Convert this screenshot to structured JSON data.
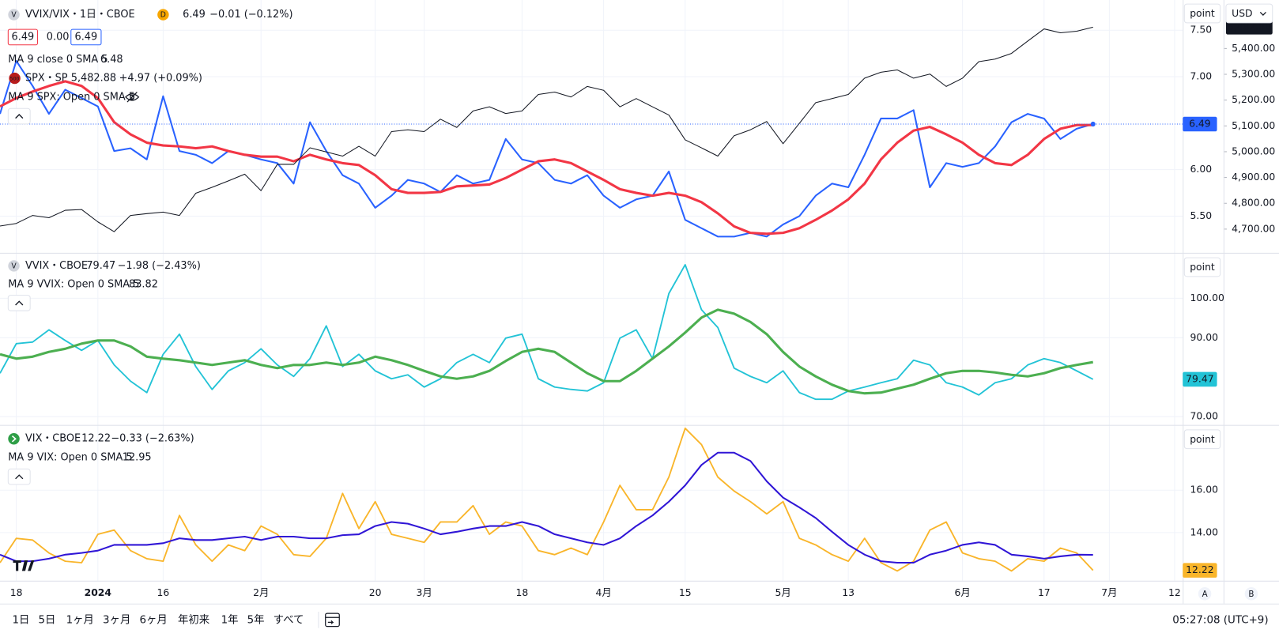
{
  "chart_data": [
    {
      "type": "line",
      "badge": "V",
      "interval_badge": "D",
      "change": "−0.01 (−0.12%)",
      "inputs": [
        "6.49",
        "0.00",
        "6.49"
      ],
      "hidden_study": "MA 9 SPX: Open 0 SMA 5",
      "scale_mode": "point",
      "currency": "USD",
      "ylim": [
        5.105,
        7.825
      ],
      "yticks": [
        {
          "value": 7.5,
          "label": "7.50"
        },
        {
          "value": 7,
          "label": "7.00"
        },
        {
          "value": 6,
          "label": "6.00"
        },
        {
          "value": 5.5,
          "label": "5.50"
        }
      ],
      "y2lim": [
        4608,
        5588
      ],
      "y2ticks": [
        {
          "value": 5400,
          "label": "5,400.00"
        },
        {
          "value": 5300,
          "label": "5,300.00"
        },
        {
          "value": 5200,
          "label": "5,200.00"
        },
        {
          "value": 5100,
          "label": "5,100.00"
        },
        {
          "value": 5000,
          "label": "5,000.00"
        },
        {
          "value": 4900,
          "label": "4,900.00"
        },
        {
          "value": 4800,
          "label": "4,800.00"
        },
        {
          "value": 4700,
          "label": "4,700.00"
        }
      ],
      "grid": true,
      "series": [
        {
          "name": "VVIX/VIX・1日・CBOE",
          "color": "#2962ff",
          "width": 2,
          "values": [
            6.6,
            7.17,
            6.9,
            6.6,
            6.86,
            6.77,
            6.68,
            6.2,
            6.23,
            6.11,
            6.79,
            6.2,
            6.16,
            6.07,
            6.2,
            6.16,
            6.11,
            6.07,
            5.85,
            6.51,
            6.2,
            5.94,
            5.85,
            5.59,
            5.72,
            5.89,
            5.85,
            5.76,
            5.94,
            5.85,
            5.89,
            6.33,
            6.11,
            6.07,
            5.89,
            5.85,
            5.94,
            5.72,
            5.59,
            5.68,
            5.72,
            5.98,
            5.46,
            5.37,
            5.28,
            5.28,
            5.32,
            5.28,
            5.41,
            5.5,
            5.72,
            5.85,
            5.81,
            6.16,
            6.55,
            6.55,
            6.64,
            5.81,
            6.07,
            6.03,
            6.07,
            6.25,
            6.51,
            6.6,
            6.55,
            6.33,
            6.44,
            6.49,
            null,
            null,
            null,
            null,
            null
          ]
        },
        {
          "name": "MA 9 close 0 SMA 5",
          "color": "#f23645",
          "width": 3,
          "values": [
            6.68,
            6.77,
            6.84,
            6.9,
            6.95,
            6.9,
            6.77,
            6.51,
            6.38,
            6.29,
            6.26,
            6.25,
            6.23,
            6.25,
            6.2,
            6.16,
            6.14,
            6.14,
            6.09,
            6.16,
            6.11,
            6.07,
            6.05,
            5.94,
            5.79,
            5.75,
            5.75,
            5.76,
            5.82,
            5.83,
            5.84,
            5.91,
            6.0,
            6.09,
            6.11,
            6.07,
            5.98,
            5.89,
            5.79,
            5.75,
            5.72,
            5.75,
            5.72,
            5.65,
            5.53,
            5.39,
            5.32,
            5.31,
            5.32,
            5.37,
            5.46,
            5.56,
            5.68,
            5.85,
            6.11,
            6.29,
            6.42,
            6.46,
            6.38,
            6.29,
            6.16,
            6.07,
            6.05,
            6.16,
            6.33,
            6.44,
            6.48,
            6.48,
            null,
            null,
            null,
            null,
            null
          ]
        },
        {
          "name": "SPX・SP",
          "badge": "500",
          "change": "+4.97 (+0.09%)",
          "color": "#131722",
          "width": 1,
          "axis": "y2",
          "values": [
            4712,
            4722,
            4753,
            4744,
            4773,
            4776,
            4728,
            4690,
            4753,
            4760,
            4766,
            4753,
            4839,
            4862,
            4887,
            4913,
            4849,
            4951,
            4951,
            5015,
            4999,
            4983,
            5021,
            4983,
            5078,
            5085,
            5078,
            5126,
            5094,
            5158,
            5174,
            5148,
            5158,
            5222,
            5231,
            5212,
            5253,
            5238,
            5174,
            5206,
            5174,
            5142,
            5046,
            5015,
            4983,
            5062,
            5085,
            5117,
            5031,
            5110,
            5190,
            5206,
            5222,
            5285,
            5308,
            5317,
            5285,
            5301,
            5253,
            5285,
            5349,
            5359,
            5381,
            5429,
            5476,
            5461,
            5467,
            5482.88,
            null,
            null,
            null,
            null,
            null
          ],
          "value_labels": [
            null,
            null,
            null,
            null,
            null,
            null,
            null,
            null,
            null,
            null,
            null,
            null,
            null,
            null,
            null,
            null,
            null,
            null,
            null,
            null,
            null,
            null,
            null,
            null,
            null,
            null,
            null,
            null,
            null,
            null,
            null,
            null,
            null,
            null,
            null,
            null,
            null,
            null,
            null,
            null,
            null,
            null,
            null,
            null,
            null,
            null,
            null,
            null,
            null,
            null,
            null,
            null,
            null,
            null,
            null,
            null,
            null,
            null,
            null,
            null,
            null,
            null,
            null,
            null,
            null,
            null,
            null,
            "5,482.88",
            null,
            null,
            null,
            null,
            null
          ]
        }
      ]
    },
    {
      "type": "line",
      "badge": "V",
      "change": "−1.98 (−2.43%)",
      "scale_mode": "point",
      "ylim": [
        67.9,
        111.3
      ],
      "yticks": [
        {
          "value": 100,
          "label": "100.00"
        },
        {
          "value": 90,
          "label": "90.00"
        },
        {
          "value": 70,
          "label": "70.00"
        }
      ],
      "grid": true,
      "series": [
        {
          "name": "VVIX・CBOE",
          "color": "#22c3d6",
          "width": 1.8,
          "values": [
            81.0,
            88.5,
            88.9,
            92.0,
            89.3,
            86.8,
            89.3,
            83.1,
            79.0,
            76.1,
            85.8,
            90.9,
            82.7,
            76.9,
            81.6,
            83.7,
            87.2,
            83.1,
            80.2,
            84.7,
            93.0,
            82.7,
            85.8,
            81.6,
            79.6,
            80.6,
            77.5,
            79.6,
            83.7,
            85.8,
            83.7,
            89.9,
            90.9,
            79.6,
            77.5,
            76.9,
            76.5,
            78.6,
            89.9,
            92.0,
            84.7,
            101.2,
            108.5,
            97.1,
            92.6,
            82.3,
            80.2,
            78.6,
            81.6,
            76.1,
            74.4,
            74.4,
            76.5,
            77.5,
            78.6,
            79.6,
            84.3,
            83.1,
            78.6,
            77.5,
            75.5,
            78.6,
            79.6,
            83.1,
            84.7,
            83.7,
            81.6,
            79.47,
            null,
            null,
            null,
            null,
            null
          ]
        },
        {
          "name": "MA 9 VVIX: Open 0 SMA 5",
          "color": "#4caf50",
          "width": 3,
          "values": [
            85.8,
            84.7,
            85.2,
            86.4,
            87.2,
            88.5,
            89.3,
            89.3,
            87.8,
            85.2,
            84.7,
            84.3,
            83.7,
            83.1,
            83.7,
            84.3,
            83.1,
            82.3,
            83.1,
            83.1,
            83.7,
            83.1,
            83.7,
            85.2,
            84.3,
            83.1,
            81.6,
            80.2,
            79.6,
            80.2,
            81.6,
            84.1,
            86.4,
            87.2,
            86.4,
            83.7,
            81.0,
            79.0,
            79.0,
            81.6,
            84.7,
            87.8,
            91.3,
            95.1,
            97.1,
            96.1,
            94.0,
            90.9,
            86.4,
            82.7,
            80.2,
            78.1,
            76.5,
            75.9,
            76.1,
            77.1,
            78.1,
            79.6,
            81.0,
            81.6,
            81.6,
            81.2,
            80.6,
            80.2,
            81.0,
            82.3,
            83.1,
            83.82,
            null,
            null,
            null,
            null,
            null
          ]
        }
      ]
    },
    {
      "type": "line",
      "change": "−0.33 (−2.63%)",
      "scale_mode": "point",
      "categories": [
        null,
        "18",
        null,
        null,
        null,
        null,
        "2024",
        null,
        null,
        null,
        "16",
        null,
        null,
        null,
        null,
        null,
        "2月",
        null,
        null,
        null,
        null,
        null,
        null,
        "20",
        null,
        null,
        "3月",
        null,
        null,
        null,
        null,
        null,
        "18",
        null,
        null,
        null,
        null,
        "4月",
        null,
        null,
        null,
        null,
        "15",
        null,
        null,
        null,
        null,
        null,
        "5月",
        null,
        null,
        null,
        "13",
        null,
        null,
        null,
        null,
        null,
        null,
        "6月",
        null,
        null,
        null,
        null,
        "17",
        null,
        null,
        null,
        "7月",
        null,
        null,
        null,
        "12"
      ],
      "ylim": [
        11.73,
        19.04
      ],
      "yticks": [
        {
          "value": 16,
          "label": "16.00"
        },
        {
          "value": 14,
          "label": "14.00"
        }
      ],
      "grid": true,
      "series": [
        {
          "name": "VIX・CBOE",
          "color": "#f9b52a",
          "width": 1.8,
          "values": [
            12.58,
            13.73,
            13.65,
            13.04,
            12.65,
            12.58,
            13.92,
            14.12,
            13.15,
            12.77,
            12.65,
            14.81,
            13.42,
            12.65,
            13.42,
            13.15,
            14.31,
            13.92,
            12.96,
            12.88,
            13.73,
            15.85,
            14.19,
            15.46,
            13.92,
            13.73,
            13.54,
            14.5,
            14.5,
            15.27,
            13.92,
            14.5,
            14.31,
            13.15,
            12.96,
            13.27,
            12.96,
            14.5,
            16.23,
            15.08,
            15.08,
            16.62,
            18.92,
            18.15,
            16.62,
            15.96,
            15.46,
            14.88,
            15.46,
            13.73,
            13.42,
            12.96,
            12.65,
            13.73,
            12.58,
            12.19,
            12.65,
            14.12,
            14.5,
            13.04,
            12.77,
            12.65,
            12.19,
            12.77,
            12.65,
            13.27,
            13.04,
            12.22,
            null,
            null,
            null,
            null,
            null
          ]
        },
        {
          "name": "MA 9 VIX: Open 0 SMA 5",
          "color": "#3016d6",
          "width": 2,
          "values": [
            12.96,
            12.65,
            12.65,
            12.77,
            12.96,
            13.04,
            13.15,
            13.42,
            13.42,
            13.42,
            13.5,
            13.73,
            13.65,
            13.65,
            13.73,
            13.81,
            13.65,
            13.81,
            13.81,
            13.73,
            13.73,
            13.88,
            13.92,
            14.31,
            14.5,
            14.42,
            14.19,
            13.92,
            14.04,
            14.19,
            14.31,
            14.31,
            14.5,
            14.31,
            13.92,
            13.73,
            13.54,
            13.42,
            13.73,
            14.31,
            14.81,
            15.46,
            16.23,
            17.19,
            17.77,
            17.77,
            17.38,
            16.42,
            15.65,
            15.19,
            14.69,
            14.04,
            13.42,
            12.96,
            12.65,
            12.58,
            12.58,
            12.96,
            13.15,
            13.42,
            13.54,
            13.42,
            12.96,
            12.88,
            12.77,
            12.88,
            12.96,
            12.95,
            null,
            null,
            null,
            null,
            null
          ]
        }
      ]
    }
  ],
  "scale_buttons": [
    "A",
    "B"
  ],
  "toolbar": {
    "ranges": [
      "1日",
      "5日",
      "1ヶ月",
      "3ヶ月",
      "6ヶ月",
      "年初来",
      "1年",
      "5年",
      "すべて"
    ],
    "time": "05:27:08 (UTC+9)"
  }
}
